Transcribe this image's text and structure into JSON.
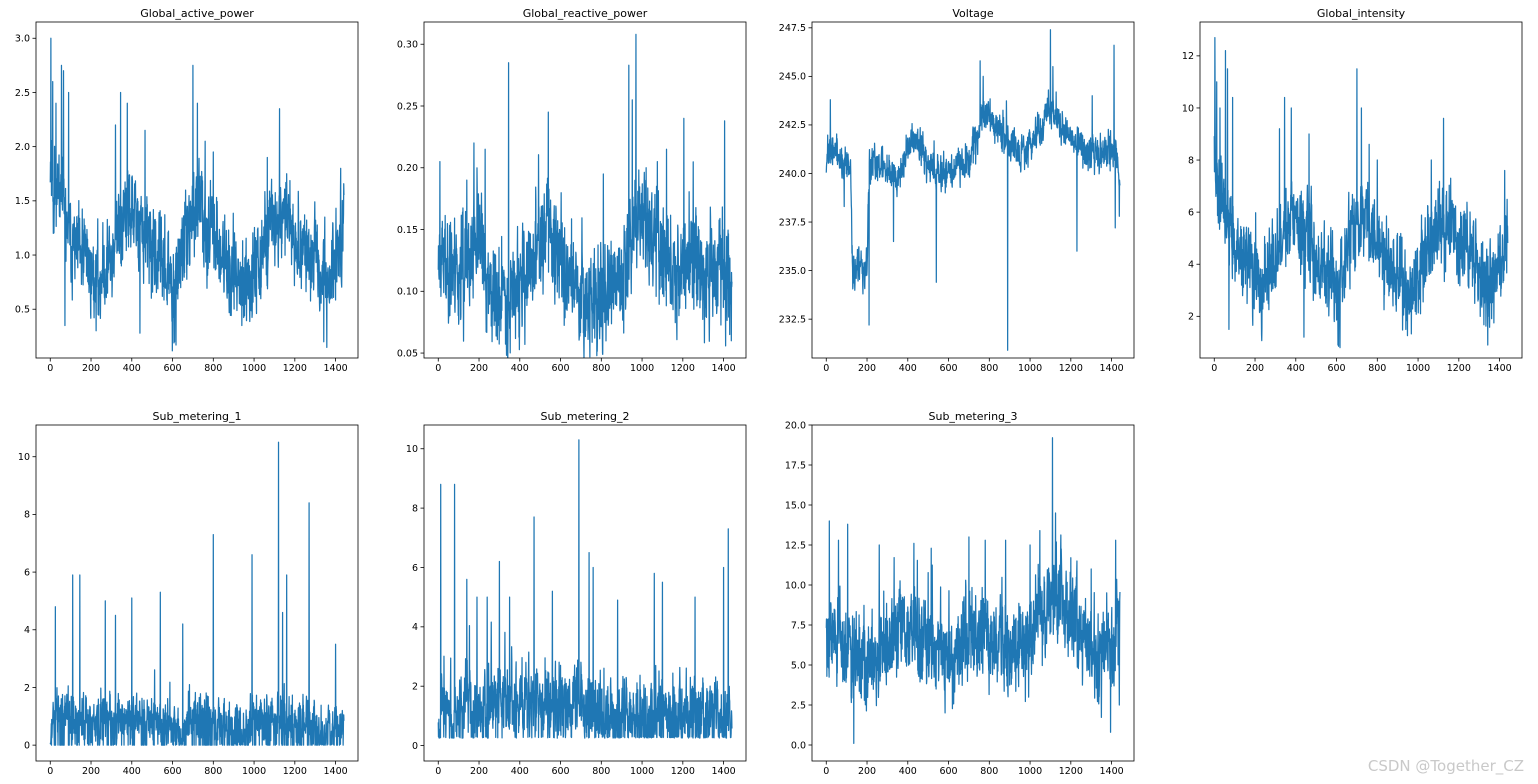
{
  "figure": {
    "watermark": "CSDN @Together_CZ",
    "line_color": "#1f77b4"
  },
  "chart_data": [
    {
      "type": "line",
      "title": "Global_active_power",
      "xlim": [
        -70,
        1510
      ],
      "ylim": [
        0.05,
        3.15
      ],
      "xticks": [
        0,
        200,
        400,
        600,
        800,
        1000,
        1200,
        1400
      ],
      "yticks": [
        0.5,
        1.0,
        1.5,
        2.0,
        2.5,
        3.0
      ],
      "ytick_labels": [
        "0.5",
        "1.0",
        "1.5",
        "2.0",
        "2.5",
        "3.0"
      ],
      "n_points": 1442,
      "x_step": 1,
      "profile": {
        "x": [
          0,
          20,
          40,
          60,
          80,
          100,
          140,
          180,
          220,
          260,
          300,
          340,
          380,
          420,
          460,
          500,
          540,
          580,
          600,
          620,
          660,
          700,
          740,
          780,
          820,
          860,
          900,
          940,
          960,
          1000,
          1040,
          1080,
          1120,
          1160,
          1200,
          1240,
          1280,
          1320,
          1360,
          1400,
          1441
        ],
        "y": [
          1.9,
          1.6,
          1.7,
          1.5,
          1.25,
          1.1,
          1.0,
          0.95,
          0.75,
          0.8,
          1.0,
          1.25,
          1.35,
          1.35,
          1.15,
          1.0,
          0.95,
          0.85,
          0.6,
          0.8,
          1.15,
          1.3,
          1.4,
          1.25,
          1.1,
          0.9,
          0.85,
          0.75,
          0.6,
          0.8,
          1.1,
          1.25,
          1.35,
          1.3,
          1.15,
          1.1,
          1.0,
          0.8,
          0.7,
          1.0,
          1.2
        ]
      },
      "noise": 0.28,
      "spikes": [
        [
          3,
          3.0
        ],
        [
          12,
          2.6
        ],
        [
          28,
          2.4
        ],
        [
          55,
          2.75
        ],
        [
          65,
          2.7
        ],
        [
          72,
          0.35
        ],
        [
          90,
          2.5
        ],
        [
          320,
          2.2
        ],
        [
          345,
          2.5
        ],
        [
          378,
          2.4
        ],
        [
          440,
          0.28
        ],
        [
          465,
          2.15
        ],
        [
          607,
          0.19
        ],
        [
          610,
          0.2
        ],
        [
          617,
          0.17
        ],
        [
          700,
          2.75
        ],
        [
          722,
          2.4
        ],
        [
          760,
          2.05
        ],
        [
          800,
          1.95
        ],
        [
          940,
          0.35
        ],
        [
          1065,
          1.9
        ],
        [
          1125,
          2.35
        ],
        [
          1160,
          1.75
        ],
        [
          1342,
          0.2
        ],
        [
          1425,
          1.8
        ]
      ],
      "seed": 11
    },
    {
      "type": "line",
      "title": "Global_reactive_power",
      "xlim": [
        -70,
        1510
      ],
      "ylim": [
        0.046,
        0.318
      ],
      "xticks": [
        0,
        200,
        400,
        600,
        800,
        1000,
        1200,
        1400
      ],
      "yticks": [
        0.05,
        0.1,
        0.15,
        0.2,
        0.25,
        0.3
      ],
      "ytick_labels": [
        "0.05",
        "0.10",
        "0.15",
        "0.20",
        "0.25",
        "0.30"
      ],
      "n_points": 1442,
      "x_step": 1,
      "profile": {
        "x": [
          0,
          40,
          80,
          120,
          160,
          200,
          260,
          300,
          340,
          380,
          420,
          460,
          500,
          540,
          580,
          620,
          660,
          700,
          740,
          780,
          820,
          860,
          900,
          940,
          980,
          1020,
          1060,
          1100,
          1140,
          1180,
          1220,
          1260,
          1300,
          1340,
          1380,
          1420,
          1441
        ],
        "y": [
          0.13,
          0.125,
          0.12,
          0.115,
          0.12,
          0.14,
          0.1,
          0.095,
          0.1,
          0.1,
          0.105,
          0.12,
          0.14,
          0.15,
          0.13,
          0.12,
          0.11,
          0.1,
          0.095,
          0.09,
          0.095,
          0.1,
          0.11,
          0.14,
          0.17,
          0.16,
          0.14,
          0.13,
          0.12,
          0.12,
          0.125,
          0.13,
          0.12,
          0.115,
          0.12,
          0.11,
          0.09
        ]
      },
      "noise": 0.03,
      "spikes": [
        [
          8,
          0.205
        ],
        [
          140,
          0.19
        ],
        [
          175,
          0.22
        ],
        [
          230,
          0.215
        ],
        [
          345,
          0.285
        ],
        [
          540,
          0.245
        ],
        [
          810,
          0.195
        ],
        [
          935,
          0.283
        ],
        [
          952,
          0.255
        ],
        [
          970,
          0.308
        ],
        [
          1020,
          0.2
        ],
        [
          1075,
          0.205
        ],
        [
          1120,
          0.215
        ],
        [
          1205,
          0.24
        ],
        [
          1405,
          0.238
        ],
        [
          1430,
          0.065
        ],
        [
          1438,
          0.06
        ]
      ],
      "seed": 23
    },
    {
      "type": "line",
      "title": "Voltage",
      "xlim": [
        -70,
        1510
      ],
      "ylim": [
        230.5,
        247.8
      ],
      "xticks": [
        0,
        200,
        400,
        600,
        800,
        1000,
        1200,
        1400
      ],
      "yticks": [
        232.5,
        235.0,
        237.5,
        240.0,
        242.5,
        245.0,
        247.5
      ],
      "ytick_labels": [
        "232.5",
        "235.0",
        "237.5",
        "240.0",
        "242.5",
        "245.0",
        "247.5"
      ],
      "n_points": 1442,
      "x_step": 1,
      "profile": {
        "x": [
          0,
          40,
          80,
          120,
          130,
          200,
          210,
          260,
          300,
          340,
          380,
          420,
          460,
          500,
          540,
          580,
          620,
          660,
          700,
          740,
          780,
          820,
          860,
          900,
          940,
          980,
          1020,
          1060,
          1100,
          1140,
          1180,
          1220,
          1260,
          1300,
          1340,
          1380,
          1420,
          1441
        ],
        "y": [
          240.8,
          241.3,
          240.4,
          240.3,
          235.0,
          235.0,
          240.2,
          240.5,
          240.3,
          240.0,
          240.5,
          241.8,
          241.5,
          240.5,
          240.2,
          240.0,
          240.3,
          240.4,
          240.8,
          242.0,
          243.2,
          242.5,
          242.0,
          241.5,
          241.0,
          241.3,
          241.8,
          242.2,
          243.5,
          242.5,
          242.0,
          241.5,
          241.3,
          241.0,
          241.2,
          241.0,
          241.5,
          239.0
        ]
      },
      "noise": 0.65,
      "spikes": [
        [
          20,
          243.8
        ],
        [
          88,
          238.3
        ],
        [
          180,
          233.8
        ],
        [
          210,
          232.2
        ],
        [
          330,
          236.5
        ],
        [
          540,
          234.4
        ],
        [
          755,
          245.8
        ],
        [
          770,
          245.0
        ],
        [
          890,
          230.9
        ],
        [
          1100,
          247.4
        ],
        [
          1112,
          245.5
        ],
        [
          1230,
          236.0
        ],
        [
          1305,
          244.0
        ],
        [
          1412,
          246.6
        ],
        [
          1418,
          237.2
        ],
        [
          1438,
          237.8
        ]
      ],
      "seed": 37
    },
    {
      "type": "line",
      "title": "Global_intensity",
      "xlim": [
        -70,
        1510
      ],
      "ylim": [
        0.4,
        13.3
      ],
      "xticks": [
        0,
        200,
        400,
        600,
        800,
        1000,
        1200,
        1400
      ],
      "yticks": [
        2,
        4,
        6,
        8,
        10,
        12
      ],
      "ytick_labels": [
        "2",
        "4",
        "6",
        "8",
        "10",
        "12"
      ],
      "n_points": 1442,
      "x_step": 1,
      "profile": {
        "x": [
          0,
          20,
          40,
          60,
          80,
          100,
          140,
          180,
          220,
          260,
          300,
          340,
          380,
          420,
          460,
          500,
          540,
          580,
          600,
          620,
          660,
          700,
          740,
          780,
          820,
          860,
          900,
          940,
          960,
          1000,
          1040,
          1080,
          1120,
          1160,
          1200,
          1240,
          1280,
          1320,
          1360,
          1400,
          1441
        ],
        "y": [
          8.0,
          6.8,
          7.0,
          6.2,
          5.2,
          4.6,
          4.2,
          3.9,
          3.1,
          3.4,
          4.2,
          5.2,
          5.6,
          5.6,
          4.8,
          4.2,
          4.0,
          3.6,
          2.6,
          3.4,
          4.8,
          5.4,
          5.8,
          5.2,
          4.6,
          3.8,
          3.6,
          3.2,
          2.6,
          3.4,
          4.6,
          5.2,
          5.6,
          5.4,
          4.8,
          4.6,
          4.2,
          3.4,
          3.0,
          4.2,
          5.0
        ]
      },
      "noise": 1.1,
      "spikes": [
        [
          3,
          12.7
        ],
        [
          12,
          11.0
        ],
        [
          28,
          10.0
        ],
        [
          55,
          12.2
        ],
        [
          65,
          11.5
        ],
        [
          72,
          1.5
        ],
        [
          90,
          10.4
        ],
        [
          320,
          9.2
        ],
        [
          345,
          10.4
        ],
        [
          378,
          10.0
        ],
        [
          440,
          1.2
        ],
        [
          465,
          9.0
        ],
        [
          607,
          0.9
        ],
        [
          610,
          0.85
        ],
        [
          617,
          0.8
        ],
        [
          700,
          11.5
        ],
        [
          722,
          10.0
        ],
        [
          760,
          8.6
        ],
        [
          800,
          8.0
        ],
        [
          940,
          1.5
        ],
        [
          1065,
          8.0
        ],
        [
          1125,
          9.6
        ],
        [
          1160,
          7.3
        ],
        [
          1342,
          0.9
        ],
        [
          1425,
          7.6
        ]
      ],
      "seed": 41
    },
    {
      "type": "line",
      "title": "Sub_metering_1",
      "xlim": [
        -70,
        1510
      ],
      "ylim": [
        -0.55,
        11.1
      ],
      "xticks": [
        0,
        200,
        400,
        600,
        800,
        1000,
        1200,
        1400
      ],
      "yticks": [
        0,
        2,
        4,
        6,
        8,
        10
      ],
      "ytick_labels": [
        "0",
        "2",
        "4",
        "6",
        "8",
        "10"
      ],
      "n_points": 1442,
      "x_step": 1,
      "profile": {
        "x": [
          0,
          60,
          120,
          200,
          300,
          400,
          500,
          600,
          640,
          700,
          800,
          900,
          940,
          1000,
          1100,
          1200,
          1260,
          1300,
          1380,
          1441
        ],
        "y": [
          0.9,
          1.1,
          1.0,
          0.9,
          0.8,
          1.0,
          0.9,
          0.8,
          0.3,
          1.0,
          1.0,
          0.6,
          0.4,
          0.7,
          1.0,
          0.9,
          0.8,
          0.6,
          0.4,
          1.1
        ]
      },
      "noise": 0.6,
      "floor": 0,
      "zero_prob": 0.12,
      "spikes": [
        [
          25,
          4.8
        ],
        [
          110,
          5.9
        ],
        [
          145,
          5.9
        ],
        [
          270,
          5.0
        ],
        [
          320,
          4.5
        ],
        [
          400,
          5.1
        ],
        [
          540,
          5.3
        ],
        [
          650,
          4.2
        ],
        [
          800,
          7.3
        ],
        [
          990,
          6.6
        ],
        [
          1120,
          10.5
        ],
        [
          1160,
          5.9
        ],
        [
          1270,
          8.4
        ],
        [
          1140,
          4.6
        ],
        [
          1400,
          3.5
        ]
      ],
      "seed": 53
    },
    {
      "type": "line",
      "title": "Sub_metering_2",
      "xlim": [
        -70,
        1510
      ],
      "ylim": [
        -0.52,
        10.8
      ],
      "xticks": [
        0,
        200,
        400,
        600,
        800,
        1000,
        1200,
        1400
      ],
      "yticks": [
        0,
        2,
        4,
        6,
        8,
        10
      ],
      "ytick_labels": [
        "0",
        "2",
        "4",
        "6",
        "8",
        "10"
      ],
      "n_points": 1442,
      "x_step": 1,
      "profile": {
        "x": [
          0,
          100,
          200,
          300,
          400,
          500,
          600,
          700,
          800,
          900,
          1000,
          1100,
          1200,
          1300,
          1400,
          1441
        ],
        "y": [
          1.0,
          1.2,
          1.4,
          1.6,
          1.5,
          1.4,
          1.3,
          1.4,
          1.2,
          1.0,
          0.9,
          1.0,
          1.1,
          1.0,
          0.9,
          0.9
        ]
      },
      "noise": 0.9,
      "floor": 0.25,
      "zero_prob": 0.03,
      "spikes": [
        [
          12,
          8.8
        ],
        [
          80,
          8.8
        ],
        [
          140,
          5.6
        ],
        [
          190,
          5.0
        ],
        [
          240,
          5.0
        ],
        [
          300,
          6.2
        ],
        [
          350,
          5.0
        ],
        [
          470,
          7.7
        ],
        [
          560,
          5.2
        ],
        [
          690,
          10.3
        ],
        [
          740,
          6.5
        ],
        [
          760,
          6.0
        ],
        [
          880,
          4.9
        ],
        [
          1060,
          5.8
        ],
        [
          1100,
          5.5
        ],
        [
          1260,
          5.0
        ],
        [
          1400,
          6.0
        ],
        [
          1423,
          7.3
        ]
      ],
      "seed": 67
    },
    {
      "type": "line",
      "title": "Sub_metering_3",
      "xlim": [
        -70,
        1510
      ],
      "ylim": [
        -1.0,
        20.0
      ],
      "xticks": [
        0,
        200,
        400,
        600,
        800,
        1000,
        1200,
        1400
      ],
      "yticks": [
        0.0,
        2.5,
        5.0,
        7.5,
        10.0,
        12.5,
        15.0,
        17.5,
        20.0
      ],
      "ytick_labels": [
        "0.0",
        "2.5",
        "5.0",
        "7.5",
        "10.0",
        "12.5",
        "15.0",
        "17.5",
        "20.0"
      ],
      "n_points": 1442,
      "x_step": 1,
      "profile": {
        "x": [
          0,
          40,
          80,
          140,
          200,
          260,
          300,
          360,
          400,
          460,
          500,
          560,
          600,
          620,
          660,
          700,
          760,
          800,
          860,
          900,
          940,
          980,
          1040,
          1080,
          1120,
          1160,
          1200,
          1240,
          1280,
          1320,
          1360,
          1400,
          1441
        ],
        "y": [
          7.0,
          7.2,
          6.5,
          5.5,
          5.0,
          5.5,
          6.5,
          7.0,
          7.5,
          7.0,
          6.5,
          6.0,
          5.8,
          5.0,
          6.0,
          6.8,
          7.0,
          6.8,
          6.5,
          6.2,
          6.0,
          6.8,
          7.5,
          8.5,
          10.0,
          9.5,
          8.0,
          7.5,
          6.5,
          5.5,
          5.0,
          6.5,
          7.0
        ]
      },
      "noise": 2.0,
      "floor": 0,
      "spikes": [
        [
          15,
          14.0
        ],
        [
          60,
          12.8
        ],
        [
          105,
          13.8
        ],
        [
          135,
          0.1
        ],
        [
          260,
          12.5
        ],
        [
          430,
          12.6
        ],
        [
          515,
          12.3
        ],
        [
          700,
          13.0
        ],
        [
          780,
          12.8
        ],
        [
          880,
          12.8
        ],
        [
          1000,
          12.5
        ],
        [
          1048,
          13.4
        ],
        [
          1110,
          19.2
        ],
        [
          1125,
          14.5
        ],
        [
          1200,
          11.7
        ],
        [
          1230,
          11.5
        ],
        [
          1300,
          11.0
        ],
        [
          1395,
          0.8
        ],
        [
          1420,
          12.8
        ],
        [
          1438,
          2.5
        ]
      ],
      "seed": 79
    }
  ]
}
